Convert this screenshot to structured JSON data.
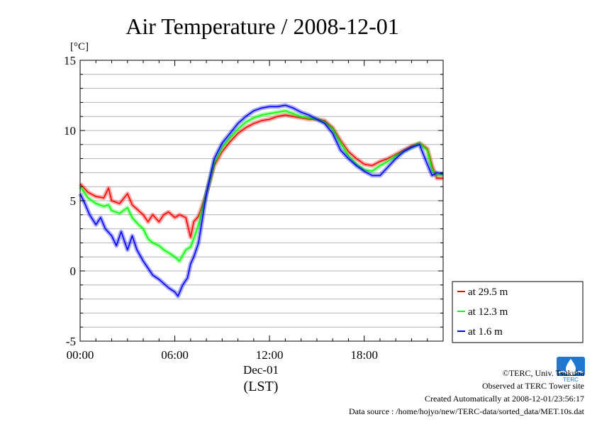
{
  "chart_data": {
    "type": "line",
    "title": "Air Temperature / 2008-12-01",
    "ylabel": "[°C]",
    "xlabel_date": "Dec-01",
    "xlabel": "(LST)",
    "xlim": [
      0,
      23
    ],
    "ylim": [
      -5,
      15
    ],
    "x_ticks": [
      0,
      6,
      12,
      18
    ],
    "x_tick_labels": [
      "00:00",
      "06:00",
      "12:00",
      "18:00"
    ],
    "y_ticks": [
      -5,
      0,
      5,
      10,
      15
    ],
    "y_tick_labels": [
      "-5",
      "0",
      "5",
      "10",
      "15"
    ],
    "grid": true,
    "legend_position": "right",
    "series": [
      {
        "name": "at 29.5 m",
        "color": "#ff0000",
        "x": [
          0,
          0.5,
          1,
          1.5,
          1.8,
          2,
          2.5,
          3,
          3.3,
          3.7,
          4,
          4.3,
          4.6,
          5,
          5.3,
          5.6,
          6,
          6.3,
          6.7,
          7,
          7.2,
          7.5,
          8,
          8.5,
          9,
          9.5,
          10,
          10.5,
          11,
          11.5,
          12,
          12.5,
          13,
          13.5,
          14,
          14.5,
          15,
          15.5,
          16,
          16.5,
          17,
          17.5,
          18,
          18.5,
          19,
          19.5,
          20,
          20.5,
          21,
          21.5,
          22,
          22.3,
          22.6,
          23
        ],
        "y": [
          6.2,
          5.6,
          5.3,
          5.2,
          5.9,
          5.0,
          4.8,
          5.5,
          4.7,
          4.3,
          4.0,
          3.5,
          4.0,
          3.5,
          4.0,
          4.2,
          3.8,
          4.0,
          3.8,
          2.4,
          3.5,
          3.9,
          5.5,
          7.5,
          8.5,
          9.2,
          9.8,
          10.2,
          10.5,
          10.7,
          10.8,
          11.0,
          11.1,
          11.0,
          10.9,
          10.8,
          10.8,
          10.7,
          10.2,
          9.3,
          8.5,
          8.0,
          7.6,
          7.5,
          7.8,
          8.0,
          8.3,
          8.6,
          8.9,
          9.1,
          8.7,
          7.5,
          6.6,
          6.6
        ]
      },
      {
        "name": "at 12.3 m",
        "color": "#00ff00",
        "x": [
          0,
          0.5,
          1,
          1.5,
          1.8,
          2,
          2.5,
          3,
          3.3,
          3.7,
          4,
          4.3,
          4.6,
          5,
          5.3,
          5.6,
          6,
          6.3,
          6.7,
          7,
          7.2,
          7.5,
          8,
          8.5,
          9,
          9.5,
          10,
          10.5,
          11,
          11.5,
          12,
          12.5,
          13,
          13.5,
          14,
          14.5,
          15,
          15.5,
          16,
          16.5,
          17,
          17.5,
          18,
          18.5,
          19,
          19.5,
          20,
          20.5,
          21,
          21.5,
          22,
          22.3,
          22.6,
          23
        ],
        "y": [
          6.0,
          5.2,
          4.8,
          4.6,
          4.7,
          4.3,
          4.1,
          4.5,
          3.8,
          3.3,
          3.0,
          2.3,
          2.0,
          1.8,
          1.5,
          1.3,
          1.0,
          0.7,
          1.5,
          1.7,
          2.3,
          3.3,
          5.5,
          7.7,
          8.8,
          9.5,
          10.1,
          10.6,
          10.9,
          11.1,
          11.2,
          11.3,
          11.4,
          11.2,
          11.0,
          10.9,
          10.8,
          10.6,
          10.1,
          9.1,
          8.2,
          7.6,
          7.2,
          7.1,
          7.5,
          7.8,
          8.2,
          8.5,
          8.8,
          9.1,
          8.6,
          7.2,
          6.8,
          6.9
        ]
      },
      {
        "name": "at 1.6 m",
        "color": "#0000ff",
        "x": [
          0,
          0.3,
          0.6,
          1,
          1.3,
          1.6,
          2,
          2.3,
          2.6,
          3,
          3.3,
          3.6,
          4,
          4.3,
          4.6,
          5,
          5.3,
          5.6,
          6,
          6.2,
          6.5,
          6.8,
          7,
          7.2,
          7.5,
          8,
          8.5,
          9,
          9.5,
          10,
          10.5,
          11,
          11.5,
          12,
          12.5,
          13,
          13.5,
          14,
          14.5,
          15,
          15.5,
          16,
          16.5,
          17,
          17.5,
          18,
          18.5,
          19,
          19.5,
          20,
          20.5,
          21,
          21.5,
          22,
          22.3,
          22.6,
          23
        ],
        "y": [
          5.5,
          4.8,
          4.0,
          3.3,
          3.8,
          3.0,
          2.5,
          1.8,
          2.8,
          1.5,
          2.5,
          1.5,
          0.7,
          0.2,
          -0.3,
          -0.6,
          -0.9,
          -1.2,
          -1.5,
          -1.8,
          -1.0,
          -0.5,
          0.5,
          1.0,
          2.0,
          5.5,
          8.0,
          9.1,
          9.8,
          10.5,
          11.0,
          11.4,
          11.6,
          11.7,
          11.7,
          11.8,
          11.6,
          11.3,
          11.1,
          10.8,
          10.5,
          9.8,
          8.6,
          8.0,
          7.5,
          7.1,
          6.8,
          6.8,
          7.4,
          8.0,
          8.5,
          8.8,
          9.0,
          7.6,
          6.8,
          7.0,
          6.9
        ]
      }
    ]
  },
  "credits": {
    "copyright": "©TERC, Univ. Tsukuba",
    "observed": "Observed at TERC Tower site",
    "created": "Created Automatically at 2008-12-01/23:56:17",
    "source": "Data source : /home/hojyo/new/TERC-data/sorted_data/MET.10s.dat",
    "logo_text": "TERC",
    "logo_color": "#1e78d2"
  }
}
